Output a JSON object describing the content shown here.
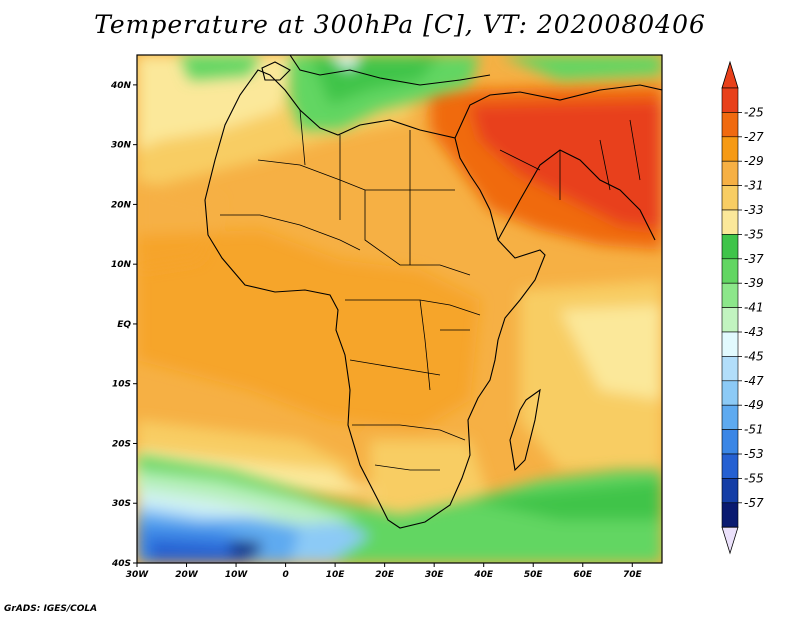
{
  "title": "Temperature at 300hPa [C], VT: 2020080406",
  "credit": "GrADS: IGES/COLA",
  "map": {
    "lon_range": [
      -30,
      76
    ],
    "lat_range": [
      -40,
      45
    ],
    "lon_ticks": [
      {
        "value": -30,
        "label": "30W"
      },
      {
        "value": -20,
        "label": "20W"
      },
      {
        "value": -10,
        "label": "10W"
      },
      {
        "value": 0,
        "label": "0"
      },
      {
        "value": 10,
        "label": "10E"
      },
      {
        "value": 20,
        "label": "20E"
      },
      {
        "value": 30,
        "label": "30E"
      },
      {
        "value": 40,
        "label": "40E"
      },
      {
        "value": 50,
        "label": "50E"
      },
      {
        "value": 60,
        "label": "60E"
      },
      {
        "value": 70,
        "label": "70E"
      }
    ],
    "lat_ticks": [
      {
        "value": 40,
        "label": "40N"
      },
      {
        "value": 30,
        "label": "30N"
      },
      {
        "value": 20,
        "label": "20N"
      },
      {
        "value": 10,
        "label": "10N"
      },
      {
        "value": 0,
        "label": "EQ"
      },
      {
        "value": -10,
        "label": "10S"
      },
      {
        "value": -20,
        "label": "20S"
      },
      {
        "value": -30,
        "label": "30S"
      },
      {
        "value": -40,
        "label": "40S"
      }
    ]
  },
  "colorbar": {
    "labels": [
      "-25",
      "-27",
      "-29",
      "-31",
      "-33",
      "-35",
      "-37",
      "-39",
      "-41",
      "-43",
      "-45",
      "-47",
      "-49",
      "-51",
      "-53",
      "-55",
      "-57"
    ],
    "colors": [
      "#e8401a",
      "#f06a10",
      "#f69a14",
      "#f6b044",
      "#f8cd63",
      "#fbe89a",
      "#3fc44a",
      "#62d662",
      "#8ce78a",
      "#c2f4c0",
      "#e2fafe",
      "#b2defa",
      "#8ccaf6",
      "#5eaaf0",
      "#3a86e6",
      "#2560d2",
      "#153ea6",
      "#0a1a70"
    ],
    "top_triangle": "#e8401a",
    "bottom_triangle": "#ebe1fb"
  }
}
